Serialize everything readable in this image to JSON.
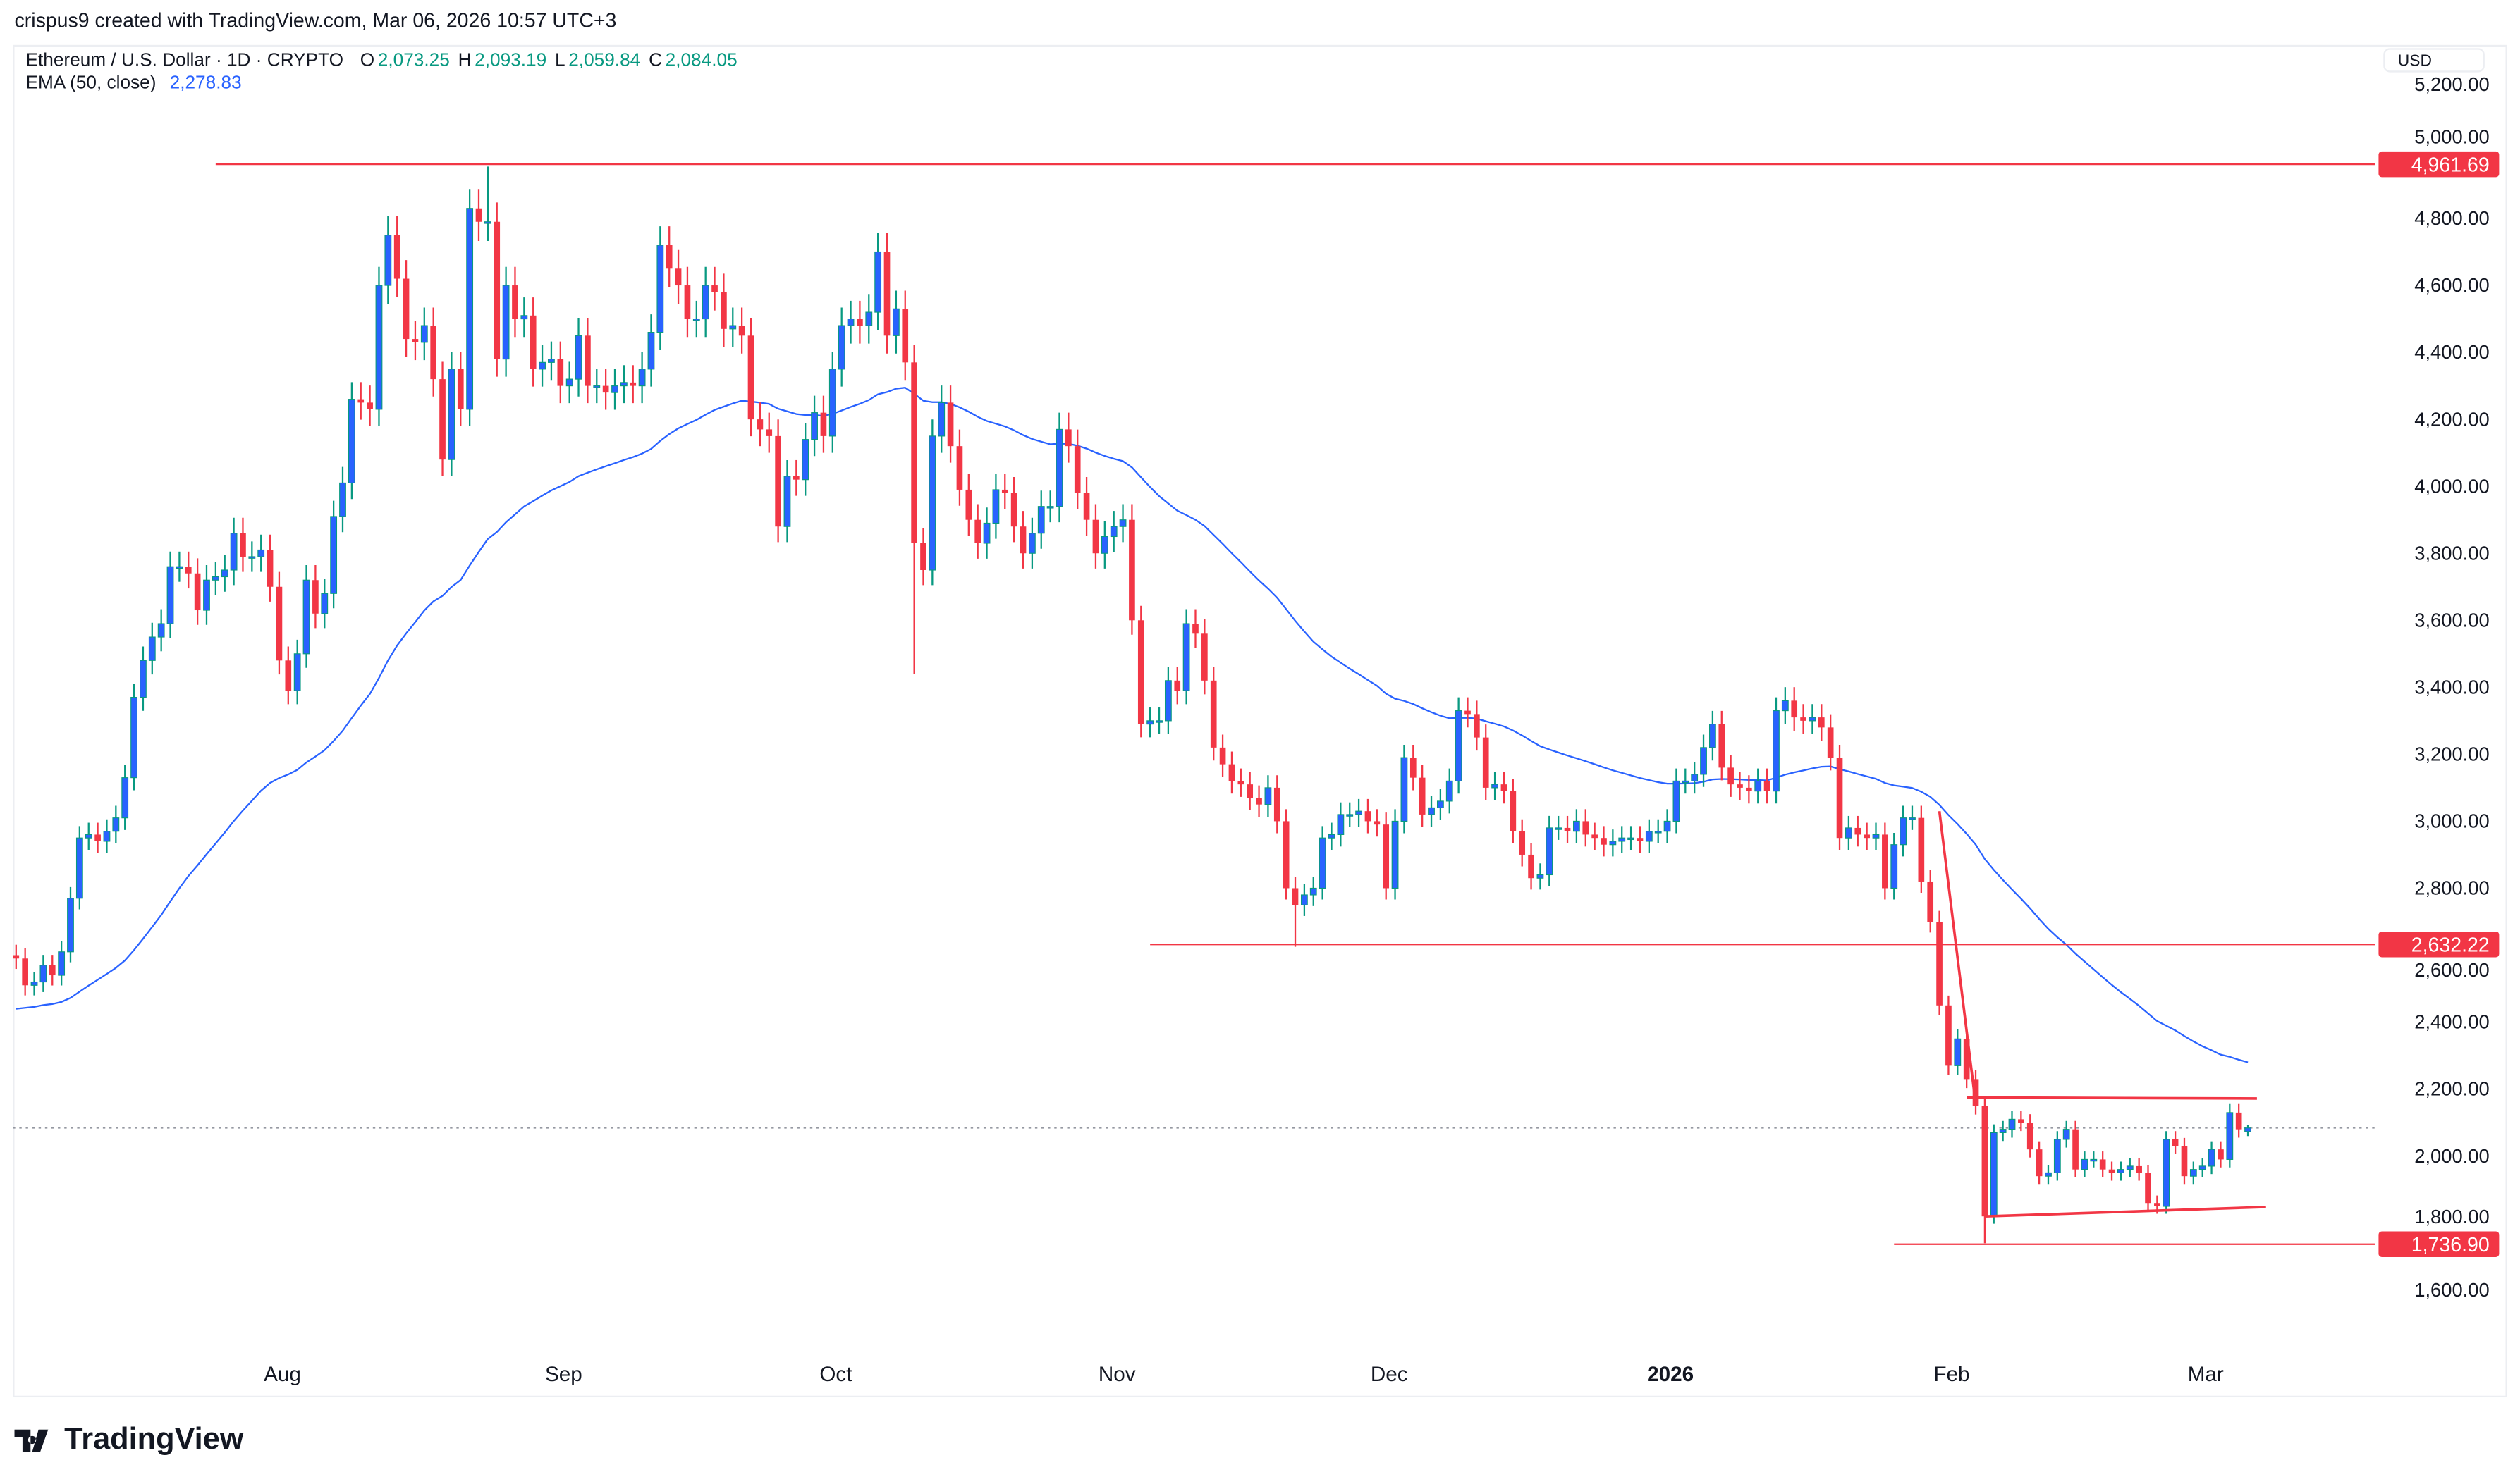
{
  "credit": "crispus9 created with TradingView.com, Mar 06, 2026 10:57 UTC+3",
  "legend": {
    "symbol": "Ethereum / U.S. Dollar · 1D · CRYPTO",
    "o_label": "O",
    "o": "2,073.25",
    "h_label": "H",
    "h": "2,093.19",
    "l_label": "L",
    "l": "2,059.84",
    "c_label": "C",
    "c": "2,084.05",
    "ema_label": "EMA (50, close)",
    "ema": "2,278.83"
  },
  "currency_button": "USD",
  "logo": "TradingView",
  "colors": {
    "up_body": "#2962ff",
    "up_wick": "#089981",
    "down": "#f23645",
    "ema": "#2962ff",
    "drawing": "#f23645",
    "last_price_line": "#9598a1"
  },
  "chart_data": {
    "type": "candlestick",
    "first_date": "2025-07-03",
    "first_open": 2600,
    "closes": [
      2590,
      2510,
      2520,
      2570,
      2540,
      2610,
      2770,
      2950,
      2960,
      2940,
      2970,
      3010,
      3130,
      3370,
      3480,
      3550,
      3590,
      3760,
      3760,
      3740,
      3630,
      3720,
      3730,
      3750,
      3860,
      3790,
      3790,
      3810,
      3700,
      3480,
      3390,
      3500,
      3720,
      3620,
      3680,
      3910,
      4010,
      4260,
      4250,
      4230,
      4600,
      4750,
      4620,
      4440,
      4430,
      4480,
      4320,
      4080,
      4350,
      4230,
      4830,
      4790,
      4790,
      4380,
      4600,
      4500,
      4510,
      4350,
      4370,
      4380,
      4300,
      4320,
      4450,
      4300,
      4300,
      4280,
      4300,
      4310,
      4300,
      4350,
      4460,
      4720,
      4650,
      4600,
      4500,
      4500,
      4600,
      4580,
      4470,
      4480,
      4450,
      4200,
      4170,
      4150,
      3880,
      4030,
      4020,
      4140,
      4220,
      4150,
      4350,
      4480,
      4500,
      4480,
      4520,
      4700,
      4450,
      4530,
      4370,
      3830,
      3750,
      4150,
      4250,
      4120,
      3990,
      3900,
      3830,
      3890,
      3990,
      3980,
      3880,
      3800,
      3860,
      3940,
      3940,
      4170,
      4120,
      3980,
      3900,
      3800,
      3850,
      3880,
      3900,
      3600,
      3290,
      3300,
      3300,
      3420,
      3390,
      3590,
      3560,
      3420,
      3220,
      3170,
      3120,
      3110,
      3070,
      3050,
      3100,
      3000,
      2800,
      2750,
      2780,
      2800,
      2950,
      2960,
      3020,
      3020,
      3030,
      3000,
      2990,
      2800,
      3000,
      3190,
      3130,
      3020,
      3040,
      3060,
      3120,
      3330,
      3320,
      3250,
      3100,
      3110,
      3090,
      2970,
      2900,
      2830,
      2840,
      2980,
      2980,
      2970,
      3000,
      2960,
      2950,
      2930,
      2940,
      2950,
      2950,
      2940,
      2970,
      2970,
      3000,
      3120,
      3120,
      3140,
      3220,
      3290,
      3160,
      3110,
      3100,
      3090,
      3120,
      3090,
      3330,
      3360,
      3310,
      3300,
      3310,
      3280,
      3190,
      2950,
      2980,
      2960,
      2950,
      2960,
      2800,
      2930,
      3010,
      3010,
      2820,
      2700,
      2450,
      2270,
      2350,
      2230,
      2150,
      1820,
      2070,
      2080,
      2110,
      2100,
      2020,
      1940,
      1950,
      2050,
      2080,
      1960,
      1990,
      1990,
      1960,
      1950,
      1960,
      1970,
      1950,
      1860,
      1850,
      2050,
      2030,
      1940,
      1960,
      1970,
      2020,
      1990,
      2130,
      2080,
      2084.05
    ],
    "overrides": [
      {
        "date": "2025-08-24",
        "high": 4955
      },
      {
        "date": "2025-10-10",
        "low": 3440
      },
      {
        "date": "2025-11-21",
        "low": 2625
      },
      {
        "date": "2026-02-05",
        "low": 1740
      },
      {
        "date": "2026-03-06",
        "open": 2073.25,
        "high": 2093.19,
        "low": 2059.84
      }
    ],
    "ema": {
      "period": 50,
      "start_value": 2440,
      "last_value": 2278.83
    },
    "y_ticks": [
      "5,200.00",
      "5,000.00",
      "4,800.00",
      "4,600.00",
      "4,400.00",
      "4,200.00",
      "4,000.00",
      "3,800.00",
      "3,600.00",
      "3,400.00",
      "3,200.00",
      "3,000.00",
      "2,800.00",
      "2,600.00",
      "2,400.00",
      "2,200.00",
      "2,000.00",
      "1,800.00",
      "1,600.00"
    ],
    "x_ticks": [
      {
        "label": "Aug",
        "date": "2025-08-01"
      },
      {
        "label": "Sep",
        "date": "2025-09-01"
      },
      {
        "label": "Oct",
        "date": "2025-10-01"
      },
      {
        "label": "Nov",
        "date": "2025-11-01"
      },
      {
        "label": "Dec",
        "date": "2025-12-01"
      },
      {
        "label": "2026",
        "date": "2026-01-01",
        "bold": true
      },
      {
        "label": "Feb",
        "date": "2026-02-01"
      },
      {
        "label": "Mar",
        "date": "2026-03-01"
      }
    ],
    "levels": [
      {
        "label": "4,961.69",
        "price": 4961.69,
        "from": "2025-07-25"
      },
      {
        "label": "2,632.22",
        "price": 2632.22,
        "from": "2025-11-05"
      },
      {
        "label": "1,736.90",
        "price": 1736.9,
        "from": "2026-01-26"
      }
    ],
    "trendlines": [
      {
        "from": {
          "date": "2026-01-31",
          "price": 3030
        },
        "to": {
          "date": "2026-02-04",
          "price": 2155
        }
      },
      {
        "from": {
          "date": "2026-02-03",
          "price": 2175
        },
        "to": {
          "date": "2026-03-07",
          "price": 2172
        }
      },
      {
        "from": {
          "date": "2026-02-05",
          "price": 1820
        },
        "to": {
          "date": "2026-03-08",
          "price": 1848
        }
      }
    ],
    "last_price": 2084.05,
    "ylim": [
      1400,
      5250
    ]
  }
}
